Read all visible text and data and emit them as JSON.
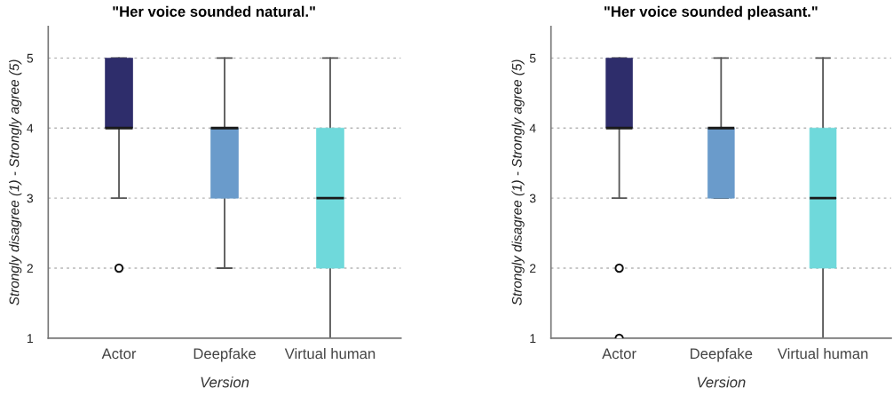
{
  "chart_data": [
    {
      "type": "box",
      "title": "\"Her voice sounded natural.\"",
      "xlabel": "Version",
      "ylabel": "Strongly disagree (1) - Strongly agree (5)",
      "categories": [
        "Actor",
        "Deepfake",
        "Virtual human"
      ],
      "colors": [
        "#2e2d6b",
        "#6a9bcb",
        "#6fd9db"
      ],
      "boxes": [
        {
          "low": 3,
          "q1": 4,
          "median": 4,
          "q3": 5,
          "high": 5,
          "outliers": [
            2
          ]
        },
        {
          "low": 2,
          "q1": 3,
          "median": 4,
          "q3": 4,
          "high": 5
        },
        {
          "low": 1,
          "q1": 2,
          "median": 3,
          "q3": 4,
          "high": 5
        }
      ],
      "ylim": [
        1,
        5.45
      ],
      "yticks": [
        1,
        2,
        3,
        4,
        5
      ],
      "grid": "y"
    },
    {
      "type": "box",
      "title": "\"Her voice sounded pleasant.\"",
      "xlabel": "Version",
      "ylabel": "Strongly disagree (1) - Strongly agree (5)",
      "categories": [
        "Actor",
        "Deepfake",
        "Virtual human"
      ],
      "colors": [
        "#2e2d6b",
        "#6a9bcb",
        "#6fd9db"
      ],
      "boxes": [
        {
          "low": 3,
          "q1": 4,
          "median": 4,
          "q3": 5,
          "high": 5,
          "outliers": [
            2,
            1
          ]
        },
        {
          "low": 3,
          "q1": 3,
          "median": 4,
          "q3": 4,
          "high": 5
        },
        {
          "low": 1,
          "q1": 2,
          "median": 3,
          "q3": 4,
          "high": 5
        }
      ],
      "ylim": [
        1,
        5.45
      ],
      "yticks": [
        1,
        2,
        3,
        4,
        5
      ],
      "grid": "y"
    }
  ]
}
